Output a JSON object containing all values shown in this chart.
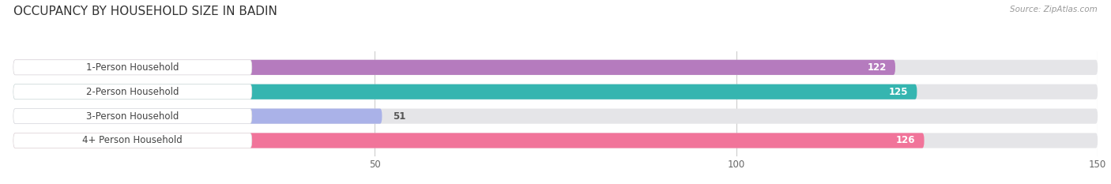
{
  "title": "OCCUPANCY BY HOUSEHOLD SIZE IN BADIN",
  "source": "Source: ZipAtlas.com",
  "categories": [
    "1-Person Household",
    "2-Person Household",
    "3-Person Household",
    "4+ Person Household"
  ],
  "values": [
    122,
    125,
    51,
    126
  ],
  "bar_colors": [
    "#b57bbe",
    "#35b5b0",
    "#aab2e8",
    "#f1749a"
  ],
  "bar_bg_color": "#e8e8ea",
  "value_label_colors": [
    "#ffffff",
    "#ffffff",
    "#555555",
    "#ffffff"
  ],
  "xlim": [
    0,
    150
  ],
  "xticks": [
    50,
    100,
    150
  ],
  "background_color": "#ffffff",
  "title_fontsize": 11,
  "source_fontsize": 7.5,
  "bar_height": 0.62,
  "track_bg": "#e5e5e8",
  "label_bg": "#ffffff",
  "label_text_color": "#444444",
  "label_fontsize": 8.5,
  "value_fontsize": 8.5,
  "grid_color": "#cccccc"
}
